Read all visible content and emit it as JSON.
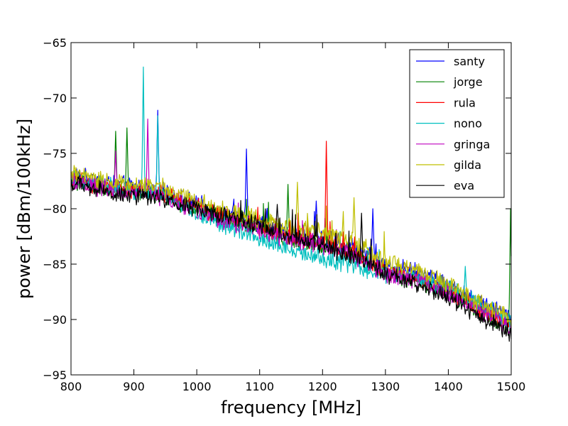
{
  "chart_data": {
    "type": "line",
    "title": "",
    "xlabel": "frequency [MHz]",
    "ylabel": "power [dBm/100kHz]",
    "xlim": [
      800,
      1500
    ],
    "ylim": [
      -95,
      -65
    ],
    "xticks": [
      800,
      900,
      1000,
      1100,
      1200,
      1300,
      1400,
      1500
    ],
    "yticks": [
      -95,
      -90,
      -85,
      -80,
      -75,
      -70,
      -65
    ],
    "x_tick_labels": [
      "800",
      "900",
      "1000",
      "1100",
      "1200",
      "1300",
      "1400",
      "1500"
    ],
    "y_tick_labels": [
      "−95",
      "−90",
      "−85",
      "−80",
      "−75",
      "−70",
      "−65"
    ],
    "grid": false,
    "legend_position": "top-right",
    "x_step_mhz": 1,
    "series": [
      {
        "name": "santy",
        "color": "#0000ff",
        "baseline": [
          [
            800,
            -77.0
          ],
          [
            870,
            -77.8
          ],
          [
            940,
            -78.3
          ],
          [
            1000,
            -79.6
          ],
          [
            1050,
            -80.6
          ],
          [
            1100,
            -81.4
          ],
          [
            1150,
            -82.3
          ],
          [
            1200,
            -82.7
          ],
          [
            1250,
            -83.4
          ],
          [
            1300,
            -85.2
          ],
          [
            1350,
            -85.6
          ],
          [
            1400,
            -86.9
          ],
          [
            1450,
            -88.6
          ],
          [
            1500,
            -89.5
          ]
        ],
        "peaks": [
          [
            938,
            -71.1
          ],
          [
            1079,
            -74.6
          ],
          [
            1190,
            -79.3
          ],
          [
            1280,
            -80.0
          ]
        ]
      },
      {
        "name": "jorge",
        "color": "#008000",
        "baseline": [
          [
            800,
            -77.4
          ],
          [
            870,
            -78.3
          ],
          [
            940,
            -78.7
          ],
          [
            1000,
            -80.0
          ],
          [
            1050,
            -81.0
          ],
          [
            1100,
            -81.8
          ],
          [
            1150,
            -82.7
          ],
          [
            1200,
            -83.2
          ],
          [
            1250,
            -84.0
          ],
          [
            1300,
            -85.8
          ],
          [
            1350,
            -86.4
          ],
          [
            1400,
            -87.5
          ],
          [
            1450,
            -89.3
          ],
          [
            1500,
            -90.7
          ]
        ],
        "peaks": [
          [
            871,
            -73.0
          ],
          [
            889,
            -72.7
          ],
          [
            1145,
            -77.8
          ],
          [
            1499,
            -80.0
          ]
        ]
      },
      {
        "name": "rula",
        "color": "#ff0000",
        "baseline": [
          [
            800,
            -77.3
          ],
          [
            870,
            -78.2
          ],
          [
            940,
            -78.5
          ],
          [
            1000,
            -79.8
          ],
          [
            1050,
            -80.9
          ],
          [
            1100,
            -81.6
          ],
          [
            1150,
            -82.6
          ],
          [
            1200,
            -83.0
          ],
          [
            1250,
            -83.8
          ],
          [
            1300,
            -85.6
          ],
          [
            1350,
            -86.2
          ],
          [
            1400,
            -87.4
          ],
          [
            1450,
            -89.1
          ],
          [
            1500,
            -90.4
          ]
        ],
        "peaks": [
          [
            1206,
            -73.9
          ]
        ]
      },
      {
        "name": "nono",
        "color": "#00bfbf",
        "baseline": [
          [
            800,
            -77.2
          ],
          [
            870,
            -78.1
          ],
          [
            940,
            -78.6
          ],
          [
            1000,
            -80.4
          ],
          [
            1050,
            -81.6
          ],
          [
            1100,
            -82.6
          ],
          [
            1150,
            -83.7
          ],
          [
            1200,
            -84.6
          ],
          [
            1250,
            -85.1
          ],
          [
            1300,
            -85.9
          ],
          [
            1350,
            -86.3
          ],
          [
            1400,
            -87.1
          ],
          [
            1450,
            -88.7
          ],
          [
            1500,
            -90.2
          ]
        ],
        "peaks": [
          [
            915,
            -67.2
          ],
          [
            938,
            -71.6
          ],
          [
            1427,
            -85.2
          ]
        ]
      },
      {
        "name": "gringa",
        "color": "#bf00bf",
        "baseline": [
          [
            800,
            -77.5
          ],
          [
            870,
            -78.4
          ],
          [
            940,
            -78.8
          ],
          [
            1000,
            -80.2
          ],
          [
            1050,
            -81.2
          ],
          [
            1100,
            -82.0
          ],
          [
            1150,
            -82.8
          ],
          [
            1200,
            -83.3
          ],
          [
            1250,
            -84.2
          ],
          [
            1300,
            -85.9
          ],
          [
            1350,
            -86.5
          ],
          [
            1400,
            -87.6
          ],
          [
            1450,
            -89.3
          ],
          [
            1500,
            -90.6
          ]
        ],
        "peaks": [
          [
            871,
            -74.8
          ],
          [
            922,
            -71.9
          ]
        ]
      },
      {
        "name": "gilda",
        "color": "#bfbf00",
        "baseline": [
          [
            800,
            -76.9
          ],
          [
            870,
            -77.6
          ],
          [
            940,
            -78.0
          ],
          [
            1000,
            -79.3
          ],
          [
            1050,
            -80.2
          ],
          [
            1100,
            -80.9
          ],
          [
            1150,
            -81.7
          ],
          [
            1200,
            -82.2
          ],
          [
            1250,
            -83.0
          ],
          [
            1300,
            -84.8
          ],
          [
            1350,
            -85.6
          ],
          [
            1400,
            -86.7
          ],
          [
            1450,
            -88.6
          ],
          [
            1500,
            -90.0
          ]
        ],
        "peaks": [
          [
            1160,
            -77.6
          ],
          [
            1250,
            -79.0
          ]
        ]
      },
      {
        "name": "eva",
        "color": "#000000",
        "baseline": [
          [
            800,
            -77.8
          ],
          [
            870,
            -78.6
          ],
          [
            940,
            -79.0
          ],
          [
            1000,
            -80.0
          ],
          [
            1050,
            -80.8
          ],
          [
            1100,
            -81.6
          ],
          [
            1150,
            -82.5
          ],
          [
            1200,
            -83.4
          ],
          [
            1250,
            -84.4
          ],
          [
            1300,
            -86.0
          ],
          [
            1350,
            -86.8
          ],
          [
            1400,
            -87.9
          ],
          [
            1450,
            -89.8
          ],
          [
            1500,
            -91.3
          ]
        ],
        "peaks": [
          [
            1128,
            -79.6
          ],
          [
            1262,
            -80.4
          ]
        ]
      }
    ]
  }
}
